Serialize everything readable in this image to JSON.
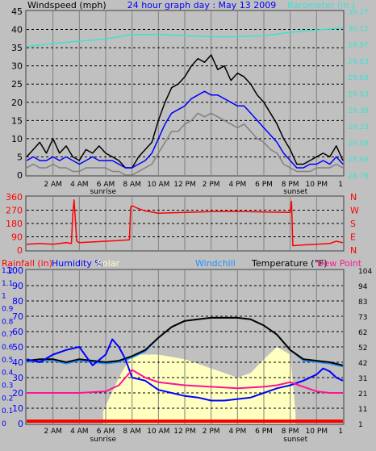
{
  "colors": {
    "panel": "#c0c0c0",
    "grid": "#808080",
    "border": "#404040",
    "wind_avg": "#0000ff",
    "wind_gust": "#000000",
    "wind_lull": "#808080",
    "barometer": "#40e0d0",
    "wind_dir": "#ff0000",
    "rainfall": "#ff0000",
    "humidity": "#0000ff",
    "solar": "#ffffc0",
    "windchill": "#1e90ff",
    "temperature": "#000000",
    "dew_point": "#ff1493",
    "rain_tick": "#0000ff",
    "temp_tick": "#000000"
  },
  "chart_data": [
    {
      "type": "line",
      "title": "24 hour graph day : May 13 2009",
      "ylabel_left": "Windspeed (mph)",
      "ylabel_right": "Barometer (in.)",
      "x_ticks": [
        "2 AM",
        "4 AM",
        "6 AM",
        "8 AM",
        "10 AM",
        "12 PM",
        "2 PM",
        "4 PM",
        "6 PM",
        "8 PM",
        "10 PM",
        "1"
      ],
      "x_tick_hours": [
        2,
        4,
        6,
        8,
        10,
        12,
        14,
        16,
        18,
        20,
        22,
        24
      ],
      "annotations": [
        {
          "text": "sunrise",
          "hour": 5.8
        },
        {
          "text": "sunset",
          "hour": 20.4
        }
      ],
      "xlim": [
        0,
        24
      ],
      "ylim_left": [
        0,
        45
      ],
      "left_ticks": [
        0,
        5,
        10,
        15,
        20,
        25,
        30,
        35,
        40,
        45
      ],
      "ylim_right": [
        28.79,
        30.27
      ],
      "right_ticks": [
        "28.79",
        "28.94",
        "29.09",
        "29.23",
        "29.38",
        "29.53",
        "29.68",
        "29.83",
        "29.97",
        "30.12",
        "30.27"
      ],
      "grid": true,
      "series": [
        {
          "key": "gust",
          "x": [
            0,
            0.5,
            1,
            1.5,
            2,
            2.5,
            3,
            3.5,
            4,
            4.5,
            5,
            5.5,
            6,
            6.5,
            7,
            7.5,
            8,
            8.5,
            9,
            9.5,
            10,
            10.5,
            11,
            11.5,
            12,
            12.5,
            13,
            13.5,
            14,
            14.5,
            15,
            15.5,
            16,
            16.5,
            17,
            17.5,
            18,
            18.5,
            19,
            19.5,
            20,
            20.5,
            21,
            21.5,
            22,
            22.5,
            23,
            23.5,
            24
          ],
          "y": [
            5,
            7,
            9,
            6,
            10,
            6,
            8,
            5,
            4,
            7,
            6,
            8,
            6,
            5,
            4,
            2,
            2,
            5,
            7,
            9,
            15,
            20,
            24,
            25,
            27,
            30,
            32,
            31,
            33,
            29,
            30,
            26,
            28,
            27,
            25,
            22,
            20,
            17,
            14,
            10,
            7,
            3,
            3,
            4,
            5,
            6,
            5,
            8,
            4
          ]
        },
        {
          "key": "avg",
          "x": [
            0,
            0.5,
            1,
            1.5,
            2,
            2.5,
            3,
            3.5,
            4,
            4.5,
            5,
            5.5,
            6,
            6.5,
            7,
            7.5,
            8,
            8.5,
            9,
            9.5,
            10,
            10.5,
            11,
            11.5,
            12,
            12.5,
            13,
            13.5,
            14,
            14.5,
            15,
            15.5,
            16,
            16.5,
            17,
            17.5,
            18,
            18.5,
            19,
            19.5,
            20,
            20.5,
            21,
            21.5,
            22,
            22.5,
            23,
            23.5,
            24
          ],
          "y": [
            4,
            5,
            4,
            4,
            5,
            4,
            5,
            4,
            3,
            4,
            5,
            4,
            4,
            4,
            3,
            2,
            2,
            3,
            4,
            6,
            10,
            14,
            17,
            18,
            19,
            21,
            22,
            23,
            22,
            22,
            21,
            20,
            19,
            19,
            17,
            15,
            13,
            11,
            9,
            6,
            4,
            2,
            2,
            3,
            3,
            4,
            3,
            5,
            3
          ]
        },
        {
          "key": "lull",
          "x": [
            0,
            0.5,
            1,
            1.5,
            2,
            2.5,
            3,
            3.5,
            4,
            4.5,
            5,
            5.5,
            6,
            6.5,
            7,
            7.5,
            8,
            8.5,
            9,
            9.5,
            10,
            10.5,
            11,
            11.5,
            12,
            12.5,
            13,
            13.5,
            14,
            14.5,
            15,
            15.5,
            16,
            16.5,
            17,
            17.5,
            18,
            18.5,
            19,
            19.5,
            20,
            20.5,
            21,
            21.5,
            22,
            22.5,
            23,
            23.5,
            24
          ],
          "y": [
            2,
            3,
            2,
            2,
            3,
            2,
            2,
            1,
            1,
            2,
            2,
            2,
            2,
            1,
            1,
            0,
            0,
            1,
            2,
            3,
            6,
            9,
            12,
            12,
            14,
            15,
            17,
            16,
            17,
            16,
            15,
            14,
            13,
            14,
            12,
            10,
            9,
            7,
            6,
            3,
            2,
            1,
            1,
            1,
            2,
            2,
            2,
            3,
            2
          ]
        },
        {
          "key": "baro",
          "x": [
            0,
            2,
            4,
            6,
            8,
            10,
            12,
            14,
            16,
            18,
            20,
            22,
            24
          ],
          "y": [
            29.95,
            29.98,
            30.0,
            30.02,
            30.06,
            30.06,
            30.05,
            30.04,
            30.04,
            30.05,
            30.08,
            30.1,
            30.12
          ]
        }
      ]
    },
    {
      "type": "line",
      "ylim": [
        0,
        360
      ],
      "left_ticks": [
        0,
        90,
        180,
        270,
        360
      ],
      "right_labels": [
        "N",
        "W",
        "S",
        "E",
        "N"
      ],
      "grid": true,
      "series": [
        {
          "key": "dir",
          "x": [
            0,
            1,
            2,
            3,
            3.4,
            3.5,
            3.6,
            3.8,
            4,
            5,
            6,
            7,
            7.8,
            7.9,
            8,
            8.5,
            9,
            10,
            12,
            14,
            16,
            18,
            20,
            20.1,
            20.2,
            21,
            22,
            23,
            23.5,
            24
          ],
          "y": [
            40,
            45,
            40,
            50,
            45,
            240,
            340,
            60,
            50,
            55,
            60,
            65,
            70,
            290,
            300,
            280,
            265,
            250,
            255,
            260,
            262,
            258,
            255,
            330,
            30,
            35,
            40,
            45,
            60,
            50
          ]
        }
      ]
    },
    {
      "type": "line",
      "ylabel_left": "Rainfall (in)",
      "legend": [
        "Humidity %",
        "Solar",
        "Windchill",
        "Temperature (°F)",
        "Dew Point"
      ],
      "left_ticks": [
        "0",
        "0.1",
        "0.2",
        "0.3",
        "0.4",
        "0.5",
        "0.6",
        "0.7",
        "0.8",
        "0.9",
        "1",
        "1.1",
        "1.2"
      ],
      "mid_ticks": [
        "0",
        "10",
        "20",
        "30",
        "40",
        "50",
        "60",
        "70",
        "80",
        "90",
        "100"
      ],
      "right_ticks": [
        "1",
        "11",
        "21",
        "31",
        "42",
        "52",
        "62",
        "73",
        "83",
        "94",
        "104"
      ],
      "ylim_pct": [
        0,
        100
      ],
      "grid": true,
      "series": [
        {
          "key": "solar",
          "x": [
            0,
            5.8,
            5.81,
            7,
            8,
            10,
            12,
            14,
            16,
            17,
            18,
            19,
            20,
            20.4,
            20.41,
            24
          ],
          "y": [
            0,
            0,
            8,
            30,
            45,
            45,
            42,
            36,
            30,
            33,
            42,
            50,
            45,
            8,
            0,
            0
          ]
        },
        {
          "key": "temp",
          "x": [
            0,
            1,
            2,
            3,
            4,
            5,
            6,
            7,
            8,
            9,
            10,
            11,
            12,
            13,
            14,
            15,
            16,
            17,
            18,
            19,
            20,
            21,
            22,
            23,
            24
          ],
          "y": [
            41,
            42,
            42,
            40,
            42,
            41,
            40,
            41,
            44,
            48,
            56,
            63,
            67,
            68,
            69,
            69,
            69,
            68,
            64,
            58,
            48,
            42,
            41,
            40,
            38
          ]
        },
        {
          "key": "windchill",
          "x": [
            0,
            1,
            2,
            3,
            4,
            5,
            6,
            7,
            8,
            9,
            10,
            11,
            12,
            13,
            14,
            15,
            16,
            17,
            18,
            19,
            20,
            21,
            22,
            23,
            24
          ],
          "y": [
            40,
            41,
            41,
            39,
            41,
            40,
            39,
            40,
            43,
            47,
            56,
            63,
            67,
            68,
            69,
            69,
            69,
            68,
            64,
            58,
            48,
            41,
            40,
            39,
            37
          ]
        },
        {
          "key": "humidity",
          "x": [
            0,
            1,
            2,
            3,
            4,
            4.5,
            5,
            6,
            6.5,
            7,
            7.5,
            8,
            9,
            10,
            11,
            12,
            13,
            14,
            15,
            16,
            17,
            18,
            19,
            20,
            21,
            22,
            22.5,
            23,
            23.5,
            24
          ],
          "y": [
            42,
            40,
            45,
            48,
            50,
            44,
            38,
            45,
            55,
            50,
            42,
            30,
            28,
            22,
            20,
            18,
            17,
            15,
            15,
            16,
            17,
            20,
            23,
            25,
            28,
            32,
            36,
            34,
            30,
            28
          ]
        },
        {
          "key": "dew",
          "x": [
            0,
            2,
            4,
            6,
            7,
            8,
            9,
            10,
            12,
            14,
            16,
            18,
            19,
            20,
            21,
            22,
            23,
            24
          ],
          "y": [
            20,
            20,
            20,
            21,
            25,
            35,
            30,
            27,
            25,
            24,
            23,
            24,
            25,
            27,
            24,
            21,
            20,
            20
          ]
        }
      ]
    }
  ]
}
